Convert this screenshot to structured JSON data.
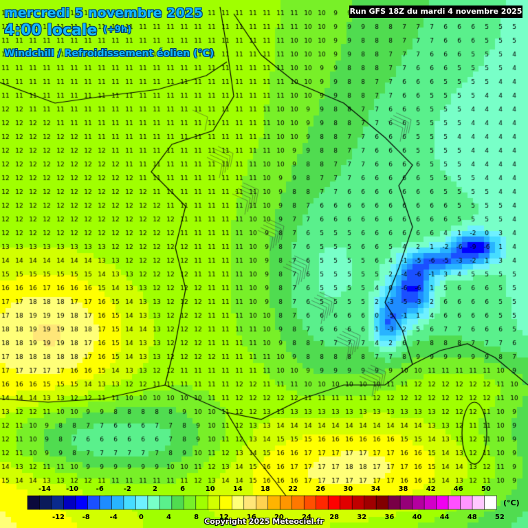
{
  "header": {
    "date": "mercredi 5 novembre 2025",
    "time": "4:00 locale",
    "lead": "(+9h)",
    "parameter": "Windchill / Refroidissement éolien (°C)",
    "run": "Run GFS 18Z du mardi 4 novembre 2025"
  },
  "footer": {
    "copyright": "Copyright 2025 Meteociel.fr"
  },
  "legend": {
    "unit": "(°C)",
    "top_labels": [
      "-14",
      "-10",
      "-6",
      "-2",
      "2",
      "6",
      "10",
      "14",
      "18",
      "22",
      "26",
      "30",
      "34",
      "38",
      "42",
      "46",
      "50"
    ],
    "bottom_labels": [
      "-12",
      "-8",
      "-4",
      "0",
      "4",
      "8",
      "12",
      "16",
      "20",
      "24",
      "28",
      "32",
      "36",
      "40",
      "44",
      "48",
      "52"
    ],
    "colors": [
      "#0a0a3c",
      "#0a1a5a",
      "#0a2a8c",
      "#0000c0",
      "#0000ff",
      "#1a50ff",
      "#1e8cff",
      "#28b4ff",
      "#46dcff",
      "#6ef0ff",
      "#78ffc8",
      "#5af08c",
      "#50dc50",
      "#78f028",
      "#a0ff00",
      "#d2ff00",
      "#ffff00",
      "#ffff78",
      "#ffe678",
      "#ffd250",
      "#ffb400",
      "#ff9600",
      "#ff7800",
      "#ff5000",
      "#ff2800",
      "#ff0000",
      "#e10000",
      "#c00000",
      "#a00000",
      "#820000",
      "#780046",
      "#960078",
      "#b400a0",
      "#d200c8",
      "#f000f0",
      "#ff50ff",
      "#ff96ff",
      "#ffc8ff",
      "#ffffff"
    ]
  },
  "map": {
    "region": "France",
    "cities": [],
    "values_note": ""
  }
}
